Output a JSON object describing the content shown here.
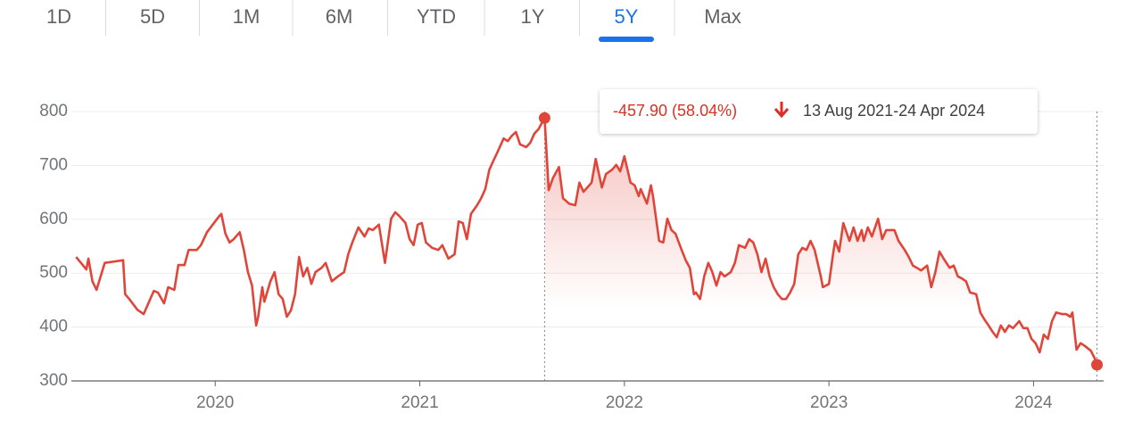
{
  "tabs": [
    "1D",
    "5D",
    "1M",
    "6M",
    "YTD",
    "1Y",
    "5Y",
    "Max"
  ],
  "selected_tab": "5Y",
  "chart_data": {
    "type": "line",
    "x": [
      2019.32,
      2019.37,
      2019.38,
      2019.4,
      2019.42,
      2019.46,
      2019.55,
      2019.56,
      2019.58,
      2019.62,
      2019.65,
      2019.7,
      2019.72,
      2019.75,
      2019.77,
      2019.8,
      2019.82,
      2019.85,
      2019.87,
      2019.91,
      2019.93,
      2019.96,
      2020.0,
      2020.02,
      2020.03,
      2020.05,
      2020.07,
      2020.09,
      2020.12,
      2020.14,
      2020.16,
      2020.18,
      2020.2,
      2020.21,
      2020.23,
      2020.24,
      2020.27,
      2020.29,
      2020.31,
      2020.33,
      2020.35,
      2020.37,
      2020.39,
      2020.41,
      2020.43,
      2020.45,
      2020.47,
      2020.49,
      2020.52,
      2020.54,
      2020.57,
      2020.6,
      2020.63,
      2020.65,
      2020.67,
      2020.7,
      2020.73,
      2020.75,
      2020.77,
      2020.8,
      2020.83,
      2020.86,
      2020.88,
      2020.9,
      2020.93,
      2020.95,
      2020.97,
      2020.99,
      2021.01,
      2021.03,
      2021.06,
      2021.09,
      2021.11,
      2021.14,
      2021.17,
      2021.19,
      2021.21,
      2021.23,
      2021.25,
      2021.28,
      2021.3,
      2021.32,
      2021.34,
      2021.36,
      2021.38,
      2021.41,
      2021.43,
      2021.45,
      2021.47,
      2021.49,
      2021.52,
      2021.54,
      2021.56,
      2021.58,
      2021.61,
      2021.63,
      2021.65,
      2021.68,
      2021.7,
      2021.73,
      2021.76,
      2021.78,
      2021.8,
      2021.84,
      2021.86,
      2021.89,
      2021.91,
      2021.94,
      2021.96,
      2021.98,
      2022.0,
      2022.03,
      2022.05,
      2022.07,
      2022.08,
      2022.11,
      2022.13,
      2022.14,
      2022.17,
      2022.19,
      2022.21,
      2022.23,
      2022.25,
      2022.28,
      2022.3,
      2022.32,
      2022.34,
      2022.35,
      2022.37,
      2022.39,
      2022.41,
      2022.43,
      2022.45,
      2022.47,
      2022.49,
      2022.52,
      2022.54,
      2022.56,
      2022.59,
      2022.61,
      2022.63,
      2022.65,
      2022.67,
      2022.69,
      2022.71,
      2022.73,
      2022.75,
      2022.77,
      2022.79,
      2022.81,
      2022.83,
      2022.85,
      2022.87,
      2022.89,
      2022.91,
      2022.93,
      2022.96,
      2022.97,
      2023.0,
      2023.02,
      2023.03,
      2023.05,
      2023.07,
      2023.1,
      2023.12,
      2023.14,
      2023.16,
      2023.17,
      2023.19,
      2023.21,
      2023.24,
      2023.26,
      2023.28,
      2023.32,
      2023.34,
      2023.37,
      2023.39,
      2023.41,
      2023.43,
      2023.45,
      2023.48,
      2023.5,
      2023.52,
      2023.54,
      2023.56,
      2023.59,
      2023.61,
      2023.63,
      2023.65,
      2023.67,
      2023.69,
      2023.72,
      2023.74,
      2023.76,
      2023.78,
      2023.8,
      2023.82,
      2023.84,
      2023.86,
      2023.88,
      2023.9,
      2023.93,
      2023.95,
      2023.97,
      2023.99,
      2024.01,
      2024.03,
      2024.05,
      2024.07,
      2024.09,
      2024.11,
      2024.14,
      2024.16,
      2024.18,
      2024.19,
      2024.21,
      2024.23,
      2024.25,
      2024.28,
      2024.3,
      2024.31
    ],
    "series": [
      {
        "color": "#e0453a",
        "values": [
          530,
          507,
          527,
          485,
          469,
          519,
          524,
          461,
          452,
          432,
          424,
          467,
          464,
          444,
          474,
          469,
          515,
          515,
          543,
          543,
          552,
          576,
          596,
          606,
          610,
          573,
          557,
          563,
          576,
          543,
          502,
          477,
          403,
          419,
          474,
          447,
          485,
          502,
          461,
          452,
          419,
          431,
          461,
          530,
          494,
          510,
          480,
          502,
          510,
          519,
          485,
          494,
          502,
          535,
          557,
          585,
          568,
          583,
          580,
          590,
          519,
          601,
          613,
          606,
          593,
          563,
          552,
          590,
          593,
          557,
          547,
          543,
          552,
          527,
          535,
          596,
          593,
          563,
          610,
          626,
          639,
          656,
          692,
          709,
          725,
          750,
          745,
          755,
          762,
          739,
          734,
          742,
          759,
          767,
          788,
          654,
          676,
          697,
          639,
          629,
          626,
          668,
          651,
          668,
          712,
          659,
          684,
          692,
          701,
          689,
          717,
          668,
          663,
          643,
          656,
          629,
          663,
          643,
          560,
          557,
          601,
          580,
          573,
          543,
          524,
          510,
          461,
          464,
          452,
          494,
          519,
          502,
          477,
          502,
          494,
          502,
          519,
          552,
          547,
          563,
          557,
          535,
          502,
          527,
          494,
          474,
          461,
          452,
          452,
          464,
          480,
          535,
          547,
          543,
          560,
          543,
          494,
          474,
          480,
          535,
          560,
          540,
          593,
          560,
          585,
          560,
          580,
          560,
          585,
          568,
          601,
          563,
          580,
          580,
          560,
          543,
          530,
          514,
          510,
          505,
          514,
          474,
          502,
          540,
          527,
          510,
          514,
          494,
          490,
          485,
          464,
          461,
          427,
          414,
          403,
          391,
          381,
          403,
          391,
          403,
          398,
          411,
          398,
          398,
          378,
          370,
          353,
          386,
          378,
          411,
          427,
          424,
          424,
          419,
          427,
          358,
          370,
          365,
          356,
          341,
          330
        ]
      }
    ],
    "xlim": [
      2019.31,
      2024.36
    ],
    "xticks": [
      2020,
      2021,
      2022,
      2023,
      2024
    ],
    "ylim": [
      300,
      800
    ],
    "yticks": [
      300,
      400,
      500,
      600,
      700,
      800
    ],
    "grid": true,
    "annotation": {
      "change": "-457.90 (58.04%)",
      "period": "13 Aug 2021-24 Apr 2024",
      "xrange": [
        2021.61,
        2024.31
      ]
    }
  }
}
